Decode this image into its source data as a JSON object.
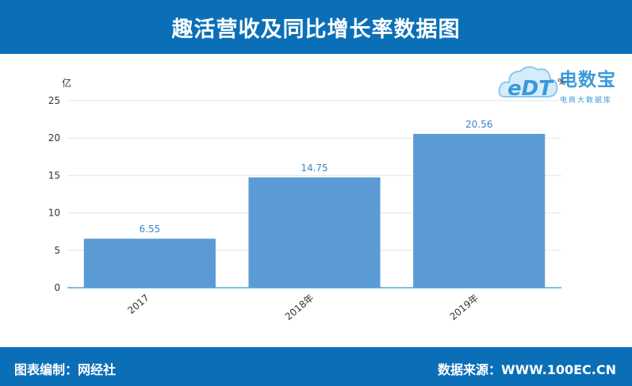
{
  "header": {
    "title": "趣活营收及同比增长率数据图"
  },
  "footer": {
    "left": "图表编制：网经社",
    "right": "数据来源：WWW.100EC.CN"
  },
  "logo": {
    "mark": "eDT",
    "name": "电数宝",
    "subtitle": "电商大数据库",
    "icon": "cloud-logo-icon"
  },
  "secondary_unit": "%",
  "colors": {
    "brand": "#0b6fb8",
    "bar": "#5b9bd5",
    "label": "#3a86c8",
    "axis": "#2b9bd8"
  },
  "chart_data": {
    "type": "bar",
    "ylabel": "亿",
    "categories": [
      "2017",
      "2018年",
      "2019年"
    ],
    "values": [
      6.55,
      14.75,
      20.56
    ],
    "data_labels": [
      "6.55",
      "14.75",
      "20.56"
    ],
    "ylim": [
      0,
      25
    ],
    "yticks": [
      0,
      5,
      10,
      15,
      20,
      25
    ],
    "grid": true
  }
}
